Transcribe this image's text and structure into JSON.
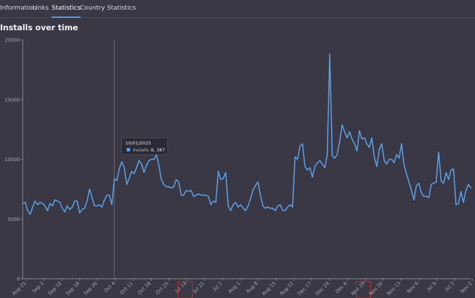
{
  "tabs": [
    {
      "label": "Information",
      "active": false
    },
    {
      "label": "Links",
      "active": false
    },
    {
      "label": "Statistics",
      "active": true
    },
    {
      "label": "Country Statistics",
      "active": false
    }
  ],
  "section_title": "Installs over time",
  "tooltip": {
    "date": "10/01/2025",
    "series_label": "Installs",
    "value": "8, 387"
  },
  "colors": {
    "background": "#3b3846",
    "accent": "#5aa0e6",
    "line": "#5aa0e6",
    "highlight_box": "#c0322f"
  },
  "chart_data": {
    "type": "line",
    "title": "",
    "xlabel": "",
    "ylabel": "",
    "ylim": [
      0,
      20000
    ],
    "y_ticks": [
      0,
      5000,
      10000,
      15000,
      20000
    ],
    "grid": false,
    "x_tick_labels": [
      "Aug 25",
      "Sep 2",
      "Sep 10",
      "Sep 18",
      "Sep 26",
      "Oct 4",
      "Oct 11",
      "Oct 18",
      "Oct 25",
      "Jul 14",
      "Jul 21",
      "Jul 2",
      "Aug 1",
      "Aug 8",
      "Aug 15",
      "Aug 22",
      "Dec 17",
      "Dec 24",
      "Dec 6",
      "Nov 29",
      "Nov 20",
      "Nov 13",
      "Nov 6",
      "Jul 9",
      "Jul 3",
      "Nov 2"
    ],
    "highlighted_tick_labels": [
      "Jul 14",
      "Nov 29"
    ],
    "hover_index": 37,
    "series": [
      {
        "name": "Installs",
        "values": [
          6300,
          6400,
          5700,
          5400,
          6000,
          6500,
          6200,
          6400,
          6300,
          6100,
          5700,
          6300,
          6100,
          6600,
          6500,
          6400,
          5900,
          5600,
          6100,
          5800,
          6000,
          6500,
          6500,
          5500,
          5800,
          5900,
          6500,
          7500,
          6800,
          6100,
          6100,
          6200,
          6000,
          6600,
          7000,
          7000,
          6200,
          8387,
          8200,
          9200,
          9800,
          9300,
          7900,
          8400,
          9000,
          8800,
          9300,
          9900,
          9600,
          8900,
          9500,
          9900,
          10000,
          10000,
          10400,
          9500,
          8300,
          7900,
          7700,
          7700,
          7600,
          7700,
          8300,
          8100,
          7000,
          7000,
          7400,
          7300,
          7400,
          6900,
          7000,
          7100,
          7000,
          7000,
          7000,
          6900,
          6200,
          6500,
          6400,
          9000,
          8300,
          8400,
          8900,
          6100,
          5700,
          6200,
          6400,
          6000,
          6200,
          5900,
          5700,
          6100,
          6700,
          7400,
          7800,
          8100,
          7000,
          6100,
          5900,
          6000,
          5900,
          5900,
          5700,
          6100,
          6200,
          5700,
          5700,
          6000,
          6200,
          6000,
          10200,
          10000,
          11100,
          11300,
          9400,
          9100,
          9300,
          8500,
          9400,
          9700,
          9900,
          9600,
          9300,
          10400,
          18800,
          10300,
          10100,
          10400,
          11500,
          12900,
          12300,
          11800,
          12300,
          11700,
          11300,
          10700,
          12400,
          11700,
          11800,
          11300,
          11000,
          11800,
          10200,
          9400,
          10800,
          11300,
          9900,
          9600,
          10000,
          10000,
          9700,
          10400,
          10100,
          11300,
          9500,
          8800,
          8100,
          7400,
          6600,
          7800,
          8000,
          7200,
          6900,
          6900,
          6800,
          7900,
          8000,
          8100,
          10600,
          8200,
          8000,
          8900,
          8300,
          9100,
          9200,
          6200,
          6300,
          7300,
          6400,
          7400,
          7900,
          7600
        ]
      }
    ]
  }
}
